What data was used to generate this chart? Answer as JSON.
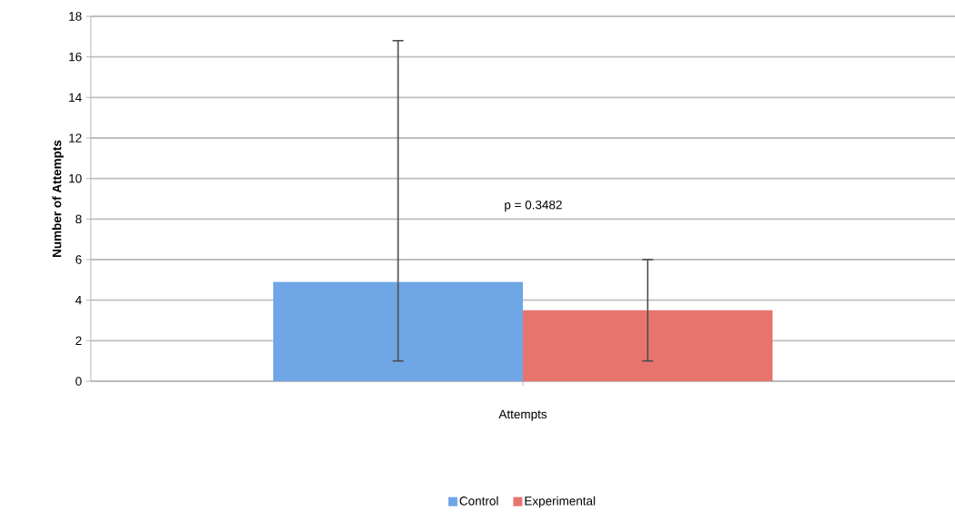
{
  "chart_data": {
    "type": "bar",
    "ylabel": "Number of Attempts",
    "categories": [
      "Attempts"
    ],
    "series": [
      {
        "name": "Control",
        "color": "#6fa6e6",
        "values": [
          4.9
        ],
        "errors": [
          [
            1.0,
            16.8
          ]
        ]
      },
      {
        "name": "Experimental",
        "color": "#e8746e",
        "values": [
          3.5
        ],
        "errors": [
          [
            1.0,
            6.0
          ]
        ]
      }
    ],
    "ylim": [
      0,
      18
    ],
    "yticks": [
      0,
      2,
      4,
      6,
      8,
      10,
      12,
      14,
      16,
      18
    ],
    "grid": "y",
    "legend": "bottom",
    "annotations": [
      "p = 0.3482"
    ]
  }
}
